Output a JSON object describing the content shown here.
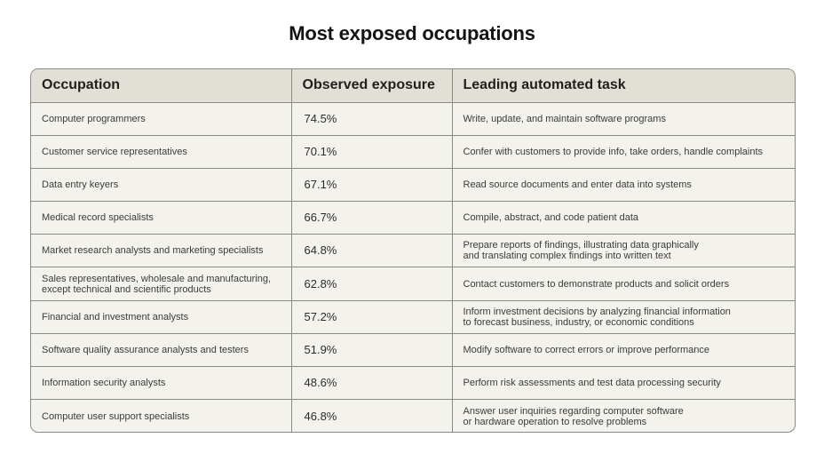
{
  "chart_data": {
    "type": "table",
    "title": "Most exposed occupations",
    "columns": [
      "Occupation",
      "Observed exposure",
      "Leading automated task"
    ],
    "rows": [
      {
        "occupation": "Computer programmers",
        "exposure": "74.5%",
        "task": "Write, update, and maintain software programs"
      },
      {
        "occupation": "Customer service representatives",
        "exposure": "70.1%",
        "task": "Confer with customers to provide info, take orders, handle complaints"
      },
      {
        "occupation": "Data entry keyers",
        "exposure": "67.1%",
        "task": "Read source documents and enter data into systems"
      },
      {
        "occupation": "Medical record specialists",
        "exposure": "66.7%",
        "task": "Compile, abstract, and code patient data"
      },
      {
        "occupation": "Market research analysts and marketing specialists",
        "exposure": "64.8%",
        "task": "Prepare reports of findings, illustrating data graphically\nand translating complex findings into written text"
      },
      {
        "occupation": "Sales representatives, wholesale and manufacturing,\nexcept technical and scientific products",
        "exposure": "62.8%",
        "task": "Contact customers to demonstrate products and solicit orders"
      },
      {
        "occupation": "Financial and investment analysts",
        "exposure": "57.2%",
        "task": "Inform investment decisions by analyzing financial information\nto forecast business, industry, or economic conditions"
      },
      {
        "occupation": "Software quality assurance analysts and testers",
        "exposure": "51.9%",
        "task": "Modify software to correct errors or improve performance"
      },
      {
        "occupation": "Information security analysts",
        "exposure": "48.6%",
        "task": "Perform risk assessments and test data processing security"
      },
      {
        "occupation": "Computer user support specialists",
        "exposure": "46.8%",
        "task": "Answer user inquiries regarding computer software\nor hardware operation to resolve problems"
      }
    ]
  },
  "colors": {
    "header_bg": "#e2e0d6",
    "row_bg": "#f3f2ed",
    "border": "#8a8a85",
    "title": "#141413"
  }
}
